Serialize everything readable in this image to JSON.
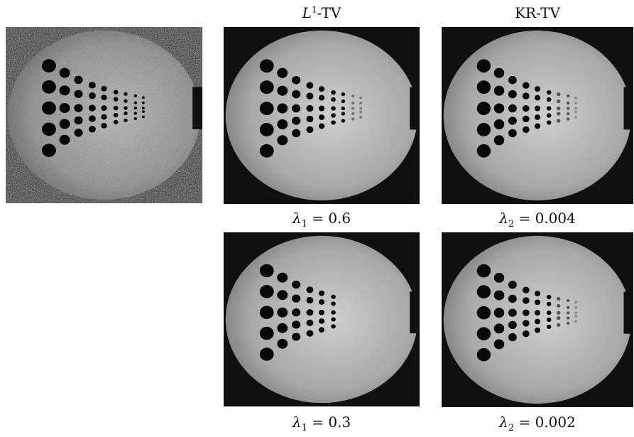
{
  "figure": {
    "columns": [
      {
        "key": "noisy",
        "title": ""
      },
      {
        "key": "l1tv",
        "title_main": "L",
        "title_sup": "1",
        "title_suffix": "-TV"
      },
      {
        "key": "krtv",
        "title": "KR-TV"
      }
    ],
    "captions": {
      "l1tv_row1": {
        "var": "λ",
        "sub": "1",
        "rest": " = 0.6"
      },
      "krtv_row1": {
        "var": "λ",
        "sub": "2",
        "rest": " = 0.004"
      },
      "l1tv_row2": {
        "var": "λ",
        "sub": "1",
        "rest": " = 0.3"
      },
      "krtv_row2": {
        "var": "λ",
        "sub": "2",
        "rest": " = 0.002"
      }
    }
  }
}
